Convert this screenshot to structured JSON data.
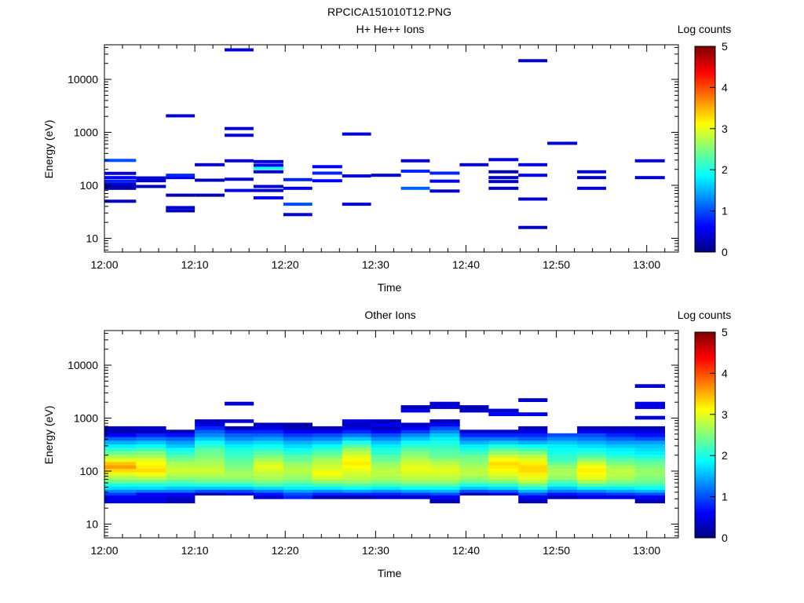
{
  "figure_title": "RPCICA151010T12.PNG",
  "colormap": [
    "#00007f",
    "#0000ff",
    "#007fff",
    "#00ffff",
    "#7fff7f",
    "#ffff00",
    "#ff7f00",
    "#ff0000",
    "#7f0000"
  ],
  "chart_data": [
    {
      "type": "heatmap",
      "title": "H+ He++ Ions",
      "xlabel": "Time",
      "ylabel": "Energy (eV)",
      "xtick_labels": [
        "12:00",
        "12:10",
        "12:20",
        "12:30",
        "12:40",
        "12:50",
        "13:00"
      ],
      "ytick_labels": [
        "10",
        "100",
        "1000",
        "10000"
      ],
      "x_minutes_range": [
        0,
        63.5
      ],
      "y_scale": "log",
      "ylim": [
        5.5,
        45000
      ],
      "colorbar": {
        "label": "Log counts",
        "range": [
          0,
          5
        ],
        "tick_labels": [
          "0",
          "1",
          "2",
          "3",
          "4",
          "5"
        ]
      },
      "cells": [
        [
          0,
          3.5,
          50,
          0.3
        ],
        [
          0,
          3.5,
          88,
          0.2
        ],
        [
          0,
          3.5,
          97,
          0.2
        ],
        [
          0,
          3.5,
          105,
          0.4
        ],
        [
          0,
          3.5,
          120,
          0.8
        ],
        [
          0,
          3.5,
          140,
          0.6
        ],
        [
          0,
          3.5,
          168,
          0.5
        ],
        [
          0,
          3.5,
          295,
          1.0
        ],
        [
          3.5,
          6.8,
          95,
          0.3
        ],
        [
          3.5,
          6.8,
          122,
          0.4
        ],
        [
          3.5,
          6.8,
          138,
          0.4
        ],
        [
          6.8,
          10,
          33,
          0.3
        ],
        [
          6.8,
          10,
          38,
          0.4
        ],
        [
          6.8,
          10,
          65,
          0.3
        ],
        [
          6.8,
          10,
          140,
          0.5
        ],
        [
          6.8,
          10,
          155,
          0.8
        ],
        [
          6.8,
          10,
          2050,
          0.4
        ],
        [
          10,
          13.3,
          65,
          0.3
        ],
        [
          10,
          13.3,
          125,
          0.3
        ],
        [
          10,
          13.3,
          245,
          0.4
        ],
        [
          13.3,
          16.5,
          80,
          0.5
        ],
        [
          13.3,
          16.5,
          130,
          0.4
        ],
        [
          13.3,
          16.5,
          290,
          0.5
        ],
        [
          13.3,
          16.5,
          880,
          0.4
        ],
        [
          13.3,
          16.5,
          1180,
          0.4
        ],
        [
          13.3,
          16.5,
          36000,
          0.4
        ],
        [
          16.5,
          19.8,
          58,
          0.6
        ],
        [
          16.5,
          19.8,
          80,
          0.4
        ],
        [
          16.5,
          19.8,
          95,
          0.4
        ],
        [
          16.5,
          19.8,
          180,
          0.4
        ],
        [
          16.5,
          19.8,
          210,
          2.0
        ],
        [
          16.5,
          19.8,
          240,
          0.6
        ],
        [
          16.5,
          19.8,
          280,
          0.4
        ],
        [
          19.8,
          23,
          28,
          0.4
        ],
        [
          19.8,
          23,
          44,
          1.0
        ],
        [
          19.8,
          23,
          88,
          0.5
        ],
        [
          19.8,
          23,
          128,
          0.8
        ],
        [
          23,
          26.3,
          122,
          0.6
        ],
        [
          23,
          26.3,
          170,
          0.8
        ],
        [
          23,
          26.3,
          225,
          0.6
        ],
        [
          26.3,
          29.5,
          44,
          0.4
        ],
        [
          26.3,
          29.5,
          150,
          0.4
        ],
        [
          26.3,
          29.5,
          930,
          0.5
        ],
        [
          29.5,
          32.8,
          155,
          0.4
        ],
        [
          32.8,
          36,
          88,
          1.1
        ],
        [
          32.8,
          36,
          185,
          0.8
        ],
        [
          32.8,
          36,
          290,
          0.5
        ],
        [
          36,
          39.3,
          78,
          0.4
        ],
        [
          36,
          39.3,
          120,
          0.6
        ],
        [
          36,
          39.3,
          170,
          0.8
        ],
        [
          39.3,
          42.5,
          245,
          0.4
        ],
        [
          42.5,
          45.8,
          88,
          0.3
        ],
        [
          42.5,
          45.8,
          118,
          0.4
        ],
        [
          42.5,
          45.8,
          140,
          0.3
        ],
        [
          42.5,
          45.8,
          180,
          0.3
        ],
        [
          42.5,
          45.8,
          305,
          0.5
        ],
        [
          45.8,
          49,
          16,
          0.3
        ],
        [
          45.8,
          49,
          55,
          0.4
        ],
        [
          45.8,
          49,
          155,
          0.6
        ],
        [
          45.8,
          49,
          245,
          0.5
        ],
        [
          45.8,
          49,
          22500,
          0.4
        ],
        [
          49,
          52.3,
          620,
          0.4
        ],
        [
          52.3,
          55.5,
          88,
          0.4
        ],
        [
          52.3,
          55.5,
          140,
          0.3
        ],
        [
          52.3,
          55.5,
          180,
          0.5
        ],
        [
          58.7,
          62,
          140,
          0.4
        ],
        [
          58.7,
          62,
          290,
          0.5
        ]
      ]
    },
    {
      "type": "heatmap",
      "title": "Other Ions",
      "xlabel": "Time",
      "ylabel": "Energy (eV)",
      "xtick_labels": [
        "12:00",
        "12:10",
        "12:20",
        "12:30",
        "12:40",
        "12:50",
        "13:00"
      ],
      "ytick_labels": [
        "10",
        "100",
        "1000",
        "10000"
      ],
      "x_minutes_range": [
        0,
        63.5
      ],
      "y_scale": "log",
      "ylim": [
        5.5,
        45000
      ],
      "colorbar": {
        "label": "Log counts",
        "range": [
          0,
          5
        ],
        "tick_labels": [
          "0",
          "1",
          "2",
          "3",
          "4",
          "5"
        ]
      },
      "profile_energies": [
        27,
        33,
        37,
        42,
        48,
        55,
        64,
        75,
        88,
        103,
        120,
        140,
        163,
        190,
        222,
        260,
        300,
        350,
        410,
        480,
        560,
        650,
        760,
        880,
        1020,
        1190,
        1390,
        1620,
        1890,
        2200,
        2570,
        3000,
        3500,
        4050
      ],
      "columns": [
        {
          "t0": 0,
          "t1": 3.5,
          "values": [
            0.5,
            0.6,
            0.9,
            1.3,
            1.7,
            2.0,
            2.4,
            2.7,
            3.0,
            3.3,
            3.6,
            3.4,
            3.0,
            2.7,
            2.4,
            2.1,
            1.8,
            1.5,
            1.1,
            0.6,
            0.3,
            0.3
          ]
        },
        {
          "t0": 3.5,
          "t1": 6.8,
          "values": [
            0.5,
            0.5,
            0.6,
            1.2,
            1.7,
            2.0,
            2.4,
            2.8,
            3.1,
            3.3,
            3.2,
            3.1,
            3.0,
            2.7,
            2.5,
            2.2,
            1.9,
            1.6,
            1.2,
            0.8,
            0.3,
            0.4
          ]
        },
        {
          "t0": 6.8,
          "t1": 10,
          "values": [
            0.3,
            0.4,
            0.6,
            1.2,
            1.6,
            2.0,
            2.3,
            2.6,
            2.8,
            2.9,
            2.8,
            2.7,
            2.5,
            2.3,
            2.1,
            1.9,
            1.6,
            1.4,
            1.1,
            0.7,
            0.3
          ]
        },
        {
          "t0": 10,
          "t1": 13.3,
          "values": [
            0,
            0,
            0.3,
            1.0,
            1.6,
            2.0,
            2.4,
            2.6,
            2.8,
            2.9,
            2.8,
            2.7,
            2.6,
            2.5,
            2.4,
            2.3,
            2.1,
            1.9,
            1.6,
            1.3,
            1.1,
            0.8,
            0.5,
            0.3
          ]
        },
        {
          "t0": 13.3,
          "t1": 16.5,
          "values": [
            0,
            0,
            0.5,
            1.0,
            1.6,
            2.0,
            2.4,
            2.6,
            2.7,
            2.6,
            2.5,
            2.4,
            2.3,
            2.2,
            2.1,
            2.0,
            1.8,
            1.6,
            1.3,
            1.1,
            0.8,
            0.3,
            0,
            0.4,
            0,
            0,
            0,
            0,
            0.4
          ]
        },
        {
          "t0": 16.5,
          "t1": 19.8,
          "values": [
            0,
            0.4,
            0.7,
            1.2,
            1.7,
            2.2,
            2.5,
            2.7,
            2.8,
            2.9,
            3.0,
            2.9,
            2.7,
            2.5,
            2.3,
            2.1,
            1.9,
            1.7,
            1.4,
            1.1,
            0.8,
            0.5,
            0.3
          ]
        },
        {
          "t0": 19.8,
          "t1": 23,
          "values": [
            0,
            0.8,
            1.0,
            1.4,
            1.8,
            2.1,
            2.4,
            2.6,
            2.7,
            2.8,
            2.7,
            2.6,
            2.4,
            2.3,
            2.1,
            1.9,
            1.7,
            1.5,
            1.2,
            0.9,
            0.6,
            0.3,
            0.2
          ]
        },
        {
          "t0": 23,
          "t1": 26.3,
          "values": [
            0,
            0.3,
            0.8,
            1.3,
            1.8,
            2.2,
            2.6,
            2.9,
            3.1,
            3.0,
            2.9,
            2.8,
            2.7,
            2.5,
            2.3,
            2.1,
            1.9,
            1.6,
            1.3,
            1.0,
            0.6,
            0.3
          ]
        },
        {
          "t0": 26.3,
          "t1": 29.5,
          "values": [
            0,
            0.3,
            0.8,
            1.4,
            1.9,
            2.3,
            2.6,
            2.8,
            2.9,
            3.0,
            3.1,
            3.2,
            3.1,
            3.0,
            2.8,
            2.6,
            2.3,
            2.0,
            1.6,
            1.2,
            0.8,
            0.5,
            0.3,
            0.5
          ]
        },
        {
          "t0": 29.5,
          "t1": 32.8,
          "values": [
            0,
            0.4,
            0.8,
            1.3,
            1.8,
            2.2,
            2.5,
            2.7,
            2.8,
            2.8,
            2.7,
            2.6,
            2.4,
            2.3,
            2.1,
            2.0,
            1.8,
            1.6,
            1.3,
            1.0,
            0.6,
            0.3,
            0.6,
            0.3
          ]
        },
        {
          "t0": 32.8,
          "t1": 36,
          "values": [
            0,
            0.4,
            0.9,
            1.4,
            1.9,
            2.3,
            2.6,
            2.8,
            2.9,
            3.0,
            3.0,
            2.9,
            2.8,
            2.6,
            2.5,
            2.3,
            2.1,
            1.9,
            1.6,
            1.3,
            0.9,
            0.6,
            0.3,
            0,
            0,
            0,
            0.5,
            0.3
          ]
        },
        {
          "t0": 36,
          "t1": 39.3,
          "values": [
            0.3,
            0.6,
            1.0,
            1.5,
            1.9,
            2.3,
            2.6,
            2.8,
            2.9,
            3.0,
            2.9,
            2.8,
            2.6,
            2.4,
            2.3,
            2.2,
            2.1,
            2.0,
            1.8,
            1.6,
            1.3,
            1.0,
            0.6,
            0.3,
            0,
            0,
            0,
            0.4,
            0.4
          ]
        },
        {
          "t0": 39.3,
          "t1": 42.5,
          "values": [
            0,
            0,
            0.3,
            1.0,
            1.6,
            2.0,
            2.4,
            2.6,
            2.8,
            2.8,
            2.7,
            2.6,
            2.5,
            2.4,
            2.2,
            2.0,
            1.8,
            1.5,
            1.2,
            0.8,
            0.4,
            0,
            0,
            0,
            0,
            0,
            0.3,
            0.3
          ]
        },
        {
          "t0": 42.5,
          "t1": 45.8,
          "values": [
            0,
            0,
            0.5,
            1.1,
            1.7,
            2.1,
            2.5,
            2.8,
            3.0,
            3.1,
            3.2,
            3.3,
            3.1,
            2.9,
            2.6,
            2.3,
            2.0,
            1.6,
            1.2,
            0.8,
            0.4,
            0,
            0,
            0,
            0,
            0.6,
            0.4
          ]
        },
        {
          "t0": 45.8,
          "t1": 49,
          "values": [
            0.3,
            0.6,
            1.0,
            1.5,
            2.0,
            2.4,
            2.8,
            3.0,
            3.2,
            3.3,
            3.3,
            3.2,
            3.0,
            2.8,
            2.5,
            2.2,
            1.9,
            1.5,
            1.1,
            0.8,
            0.5,
            0.3,
            0,
            0,
            0,
            0.5,
            0,
            0,
            0,
            0.4
          ]
        },
        {
          "t0": 49,
          "t1": 52.3,
          "values": [
            0,
            0.3,
            0.7,
            1.2,
            1.6,
            2.0,
            2.3,
            2.6,
            2.7,
            2.7,
            2.6,
            2.4,
            2.2,
            2.1,
            2.0,
            1.9,
            1.8,
            1.6,
            1.3,
            1.0
          ]
        },
        {
          "t0": 52.3,
          "t1": 55.5,
          "values": [
            0,
            0.5,
            0.8,
            1.3,
            1.8,
            2.3,
            2.7,
            3.0,
            3.1,
            3.2,
            3.1,
            2.9,
            2.6,
            2.3,
            2.1,
            1.9,
            1.7,
            1.5,
            1.2,
            1.0,
            0.6,
            0.3
          ]
        },
        {
          "t0": 55.5,
          "t1": 58.7,
          "values": [
            0,
            0.5,
            0.9,
            1.4,
            1.8,
            2.2,
            2.5,
            2.7,
            2.8,
            2.8,
            2.7,
            2.5,
            2.3,
            2.1,
            1.9,
            1.8,
            1.6,
            1.4,
            1.1,
            0.8,
            0.5,
            0.3
          ]
        },
        {
          "t0": 58.7,
          "t1": 62,
          "values": [
            0.3,
            0.6,
            1.0,
            1.5,
            1.9,
            2.2,
            2.4,
            2.5,
            2.6,
            2.6,
            2.5,
            2.4,
            2.2,
            2.0,
            1.8,
            1.7,
            1.6,
            1.4,
            1.0,
            0.7,
            0.5,
            0.3,
            0,
            0,
            0.4,
            0,
            0,
            0.5,
            0.5,
            0,
            0,
            0,
            0,
            0.4
          ]
        }
      ]
    }
  ]
}
